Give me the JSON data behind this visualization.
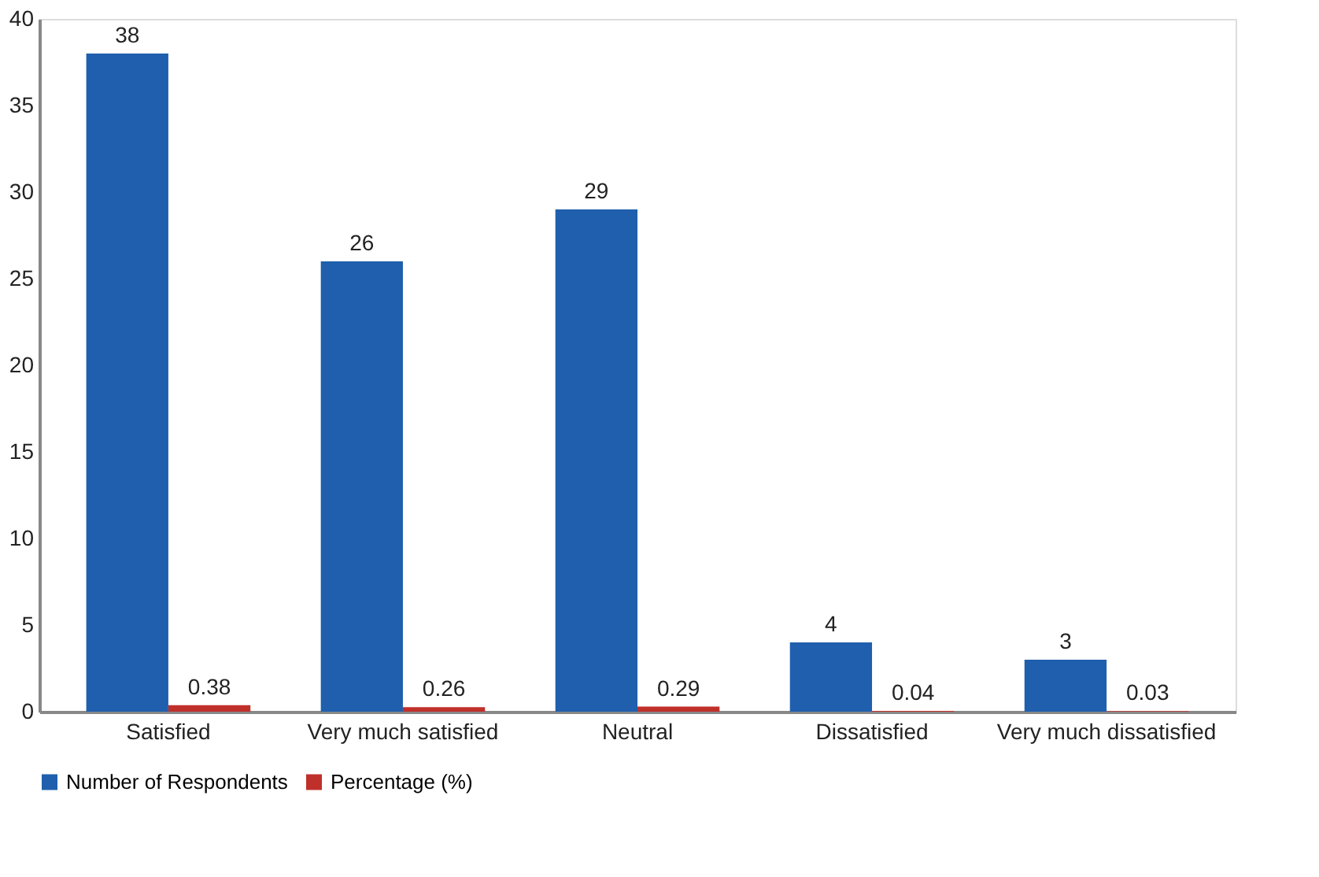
{
  "chart_data": {
    "type": "bar",
    "categories": [
      "Satisfied",
      "Very much satisfied",
      "Neutral",
      "Dissatisfied",
      "Very much  dissatisfied"
    ],
    "series": [
      {
        "name": "Number of Respondents",
        "color": "#1f5fad",
        "values": [
          38,
          26,
          29,
          4,
          3
        ]
      },
      {
        "name": "Percentage (%)",
        "color": "#c0302b",
        "values": [
          0.38,
          0.26,
          0.29,
          0.04,
          0.03
        ]
      }
    ],
    "ylim": [
      0,
      40
    ],
    "yticks": [
      0,
      5,
      10,
      15,
      20,
      25,
      30,
      35,
      40
    ],
    "data_labels": true,
    "legend": "bottom",
    "grid": false
  }
}
